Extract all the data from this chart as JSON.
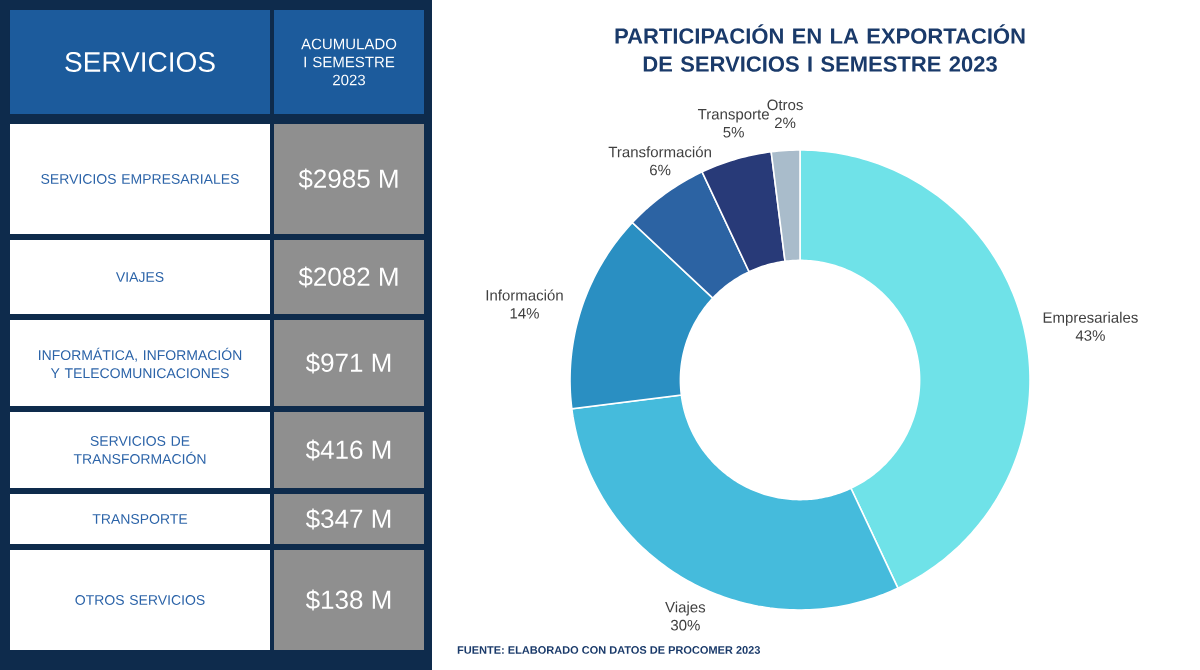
{
  "chart_data": [
    {
      "type": "other",
      "xlabel": "SERVICIOS",
      "ylabel": "ACUMULADO I SEMESTRE 2023",
      "categories": [
        "SERVICIOS EMPRESARIALES",
        "VIAJES",
        "INFORMÁTICA, INFORMACIÓN Y TELECOMUNICACIONES",
        "SERVICIOS DE TRANSFORMACIÓN",
        "TRANSPORTE",
        "OTROS SERVICIOS"
      ],
      "value_labels": [
        "$2985 M",
        "$2082 M",
        "$971 M",
        "$416 M",
        "$347 M",
        "$138 M"
      ]
    },
    {
      "type": "donut",
      "title": "PARTICIPACIÓN EN LA EXPORTACIÓN DE SERVICIOS I SEMESTRE 2023",
      "categories": [
        "Empresariales",
        "Viajes",
        "Información",
        "Transformación",
        "Transporte",
        "Otros"
      ],
      "values": [
        43,
        30,
        14,
        6,
        5,
        2
      ],
      "colors": [
        "#6fe2e8",
        "#45bbdc",
        "#2a8fc2",
        "#2c63a3",
        "#283a78",
        "#a9bccb"
      ],
      "value_labels": [
        "43%",
        "30%",
        "14%",
        "6%",
        "5%",
        "2%"
      ],
      "annotations": [
        "FUENTE: ELABORADO CON DATOS DE PROCOMER 2023"
      ]
    }
  ]
}
